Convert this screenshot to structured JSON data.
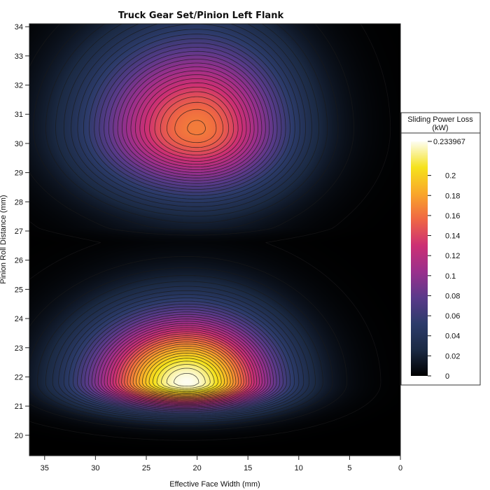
{
  "chart_data": {
    "type": "heatmap",
    "title": "Truck Gear Set/Pinion Left Flank",
    "xlabel": "Effective Face Width (mm)",
    "ylabel": "Pinion Roll Distance (mm)",
    "x_reversed": true,
    "xlim": [
      0,
      36.5
    ],
    "ylim": [
      19.3,
      34.1
    ],
    "x_ticks": [
      35,
      30,
      25,
      20,
      15,
      10,
      5,
      0
    ],
    "y_ticks": [
      20,
      21,
      22,
      23,
      24,
      25,
      26,
      27,
      28,
      29,
      30,
      31,
      32,
      33,
      34
    ],
    "colormap": [
      "#000000",
      "#1b2a44",
      "#2c3b6a",
      "#5a3a8a",
      "#9a2f8c",
      "#cc2f74",
      "#ef6644",
      "#f9a72a",
      "#f5e21c",
      "#fdfdf2"
    ],
    "peaks": [
      {
        "label": "upper",
        "x": 20.0,
        "y": 30.5,
        "value": 0.165
      },
      {
        "label": "lower",
        "x": 21.0,
        "y": 21.8,
        "value": 0.234
      }
    ],
    "colorbar": {
      "title_line1": "Sliding Power Loss",
      "title_line2": "(kW)",
      "min": 0,
      "max": 0.233967,
      "max_label": "0.233967",
      "ticks": [
        {
          "value": 0,
          "label": "0"
        },
        {
          "value": 0.02,
          "label": "0.02"
        },
        {
          "value": 0.04,
          "label": "0.04"
        },
        {
          "value": 0.06,
          "label": "0.06"
        },
        {
          "value": 0.08,
          "label": "0.08"
        },
        {
          "value": 0.1,
          "label": "0.1"
        },
        {
          "value": 0.12,
          "label": "0.12"
        },
        {
          "value": 0.14,
          "label": "0.14"
        },
        {
          "value": 0.16,
          "label": "0.16"
        },
        {
          "value": 0.18,
          "label": "0.18"
        },
        {
          "value": 0.2,
          "label": "0.2"
        }
      ]
    }
  }
}
